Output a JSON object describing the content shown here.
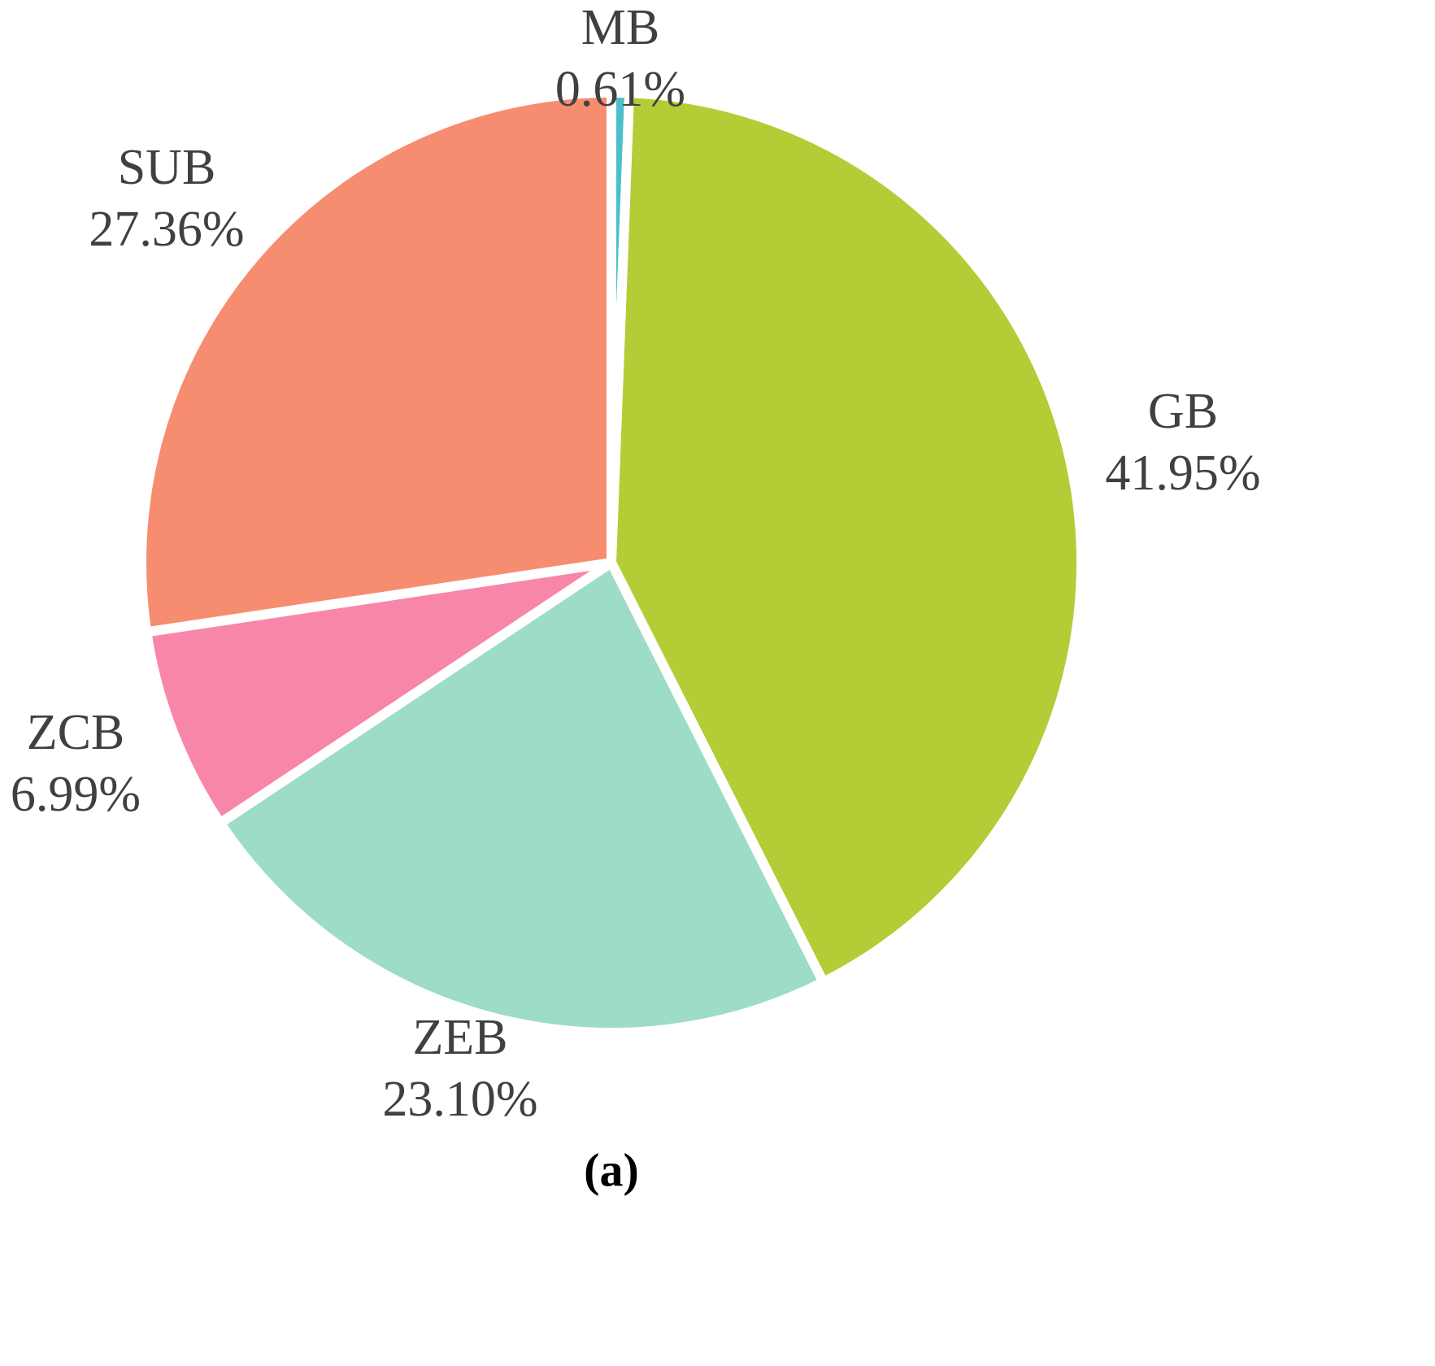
{
  "chart_data": {
    "type": "pie",
    "categories": [
      "MB",
      "GB",
      "ZEB",
      "ZCB",
      "SUB"
    ],
    "values": [
      0.61,
      41.95,
      23.1,
      6.99,
      27.36
    ],
    "value_labels": [
      "0.61%",
      "41.95%",
      "23.10%",
      "6.99%",
      "27.36%"
    ],
    "colors": [
      "#4bbfcb",
      "#b2cd36",
      "#9ddcc6",
      "#f886a8",
      "#f78d70"
    ],
    "caption": "(a)"
  }
}
